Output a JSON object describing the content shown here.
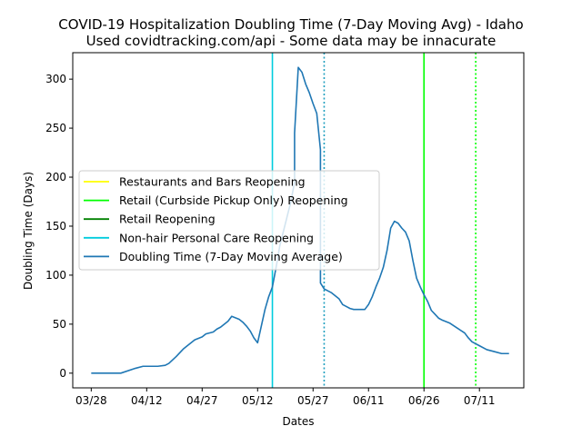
{
  "chart_data": {
    "type": "line",
    "title": "COVID-19 Hospitalization Doubling Time (7-Day Moving Avg) - Idaho",
    "subtitle": "Used covidtracking.com/api - Some data may be innacurate",
    "xlabel": "Dates",
    "ylabel": "Doubling Time (Days)",
    "xticks": [
      "03/28",
      "04/12",
      "04/27",
      "05/12",
      "05/27",
      "06/11",
      "06/26",
      "07/11"
    ],
    "xlim": [
      "2020-03-23",
      "2020-07-23"
    ],
    "ylim": [
      -15,
      327
    ],
    "yticks": [
      0,
      50,
      100,
      150,
      200,
      250,
      300
    ],
    "grid": false,
    "legend_position": "center-left",
    "legend": [
      {
        "label": "Restaurants and Bars Reopening",
        "color": "#ffff00"
      },
      {
        "label": "Retail (Curbside Pickup Only) Reopening",
        "color": "#00ff00"
      },
      {
        "label": "Retail Reopening",
        "color": "#008000"
      },
      {
        "label": "Non-hair Personal Care Reopening",
        "color": "#00ccdd"
      },
      {
        "label": "Doubling Time (7-Day Moving Average)",
        "color": "#1f77b4"
      }
    ],
    "vlines": [
      {
        "date": "2020-05-16",
        "color": "#00ccdd",
        "style": "solid"
      },
      {
        "date": "2020-05-30",
        "color": "#1f9fbf",
        "style": "dotted"
      },
      {
        "date": "2020-06-26",
        "color": "#00ff00",
        "style": "solid"
      },
      {
        "date": "2020-07-10",
        "color": "#00ff00",
        "style": "dotted"
      }
    ],
    "series": [
      {
        "name": "Doubling Time (7-Day Moving Average)",
        "color": "#1f77b4",
        "points": [
          [
            "2020-03-28",
            0
          ],
          [
            "2020-04-03",
            0
          ],
          [
            "2020-04-05",
            0
          ],
          [
            "2020-04-09",
            5
          ],
          [
            "2020-04-11",
            7
          ],
          [
            "2020-04-15",
            7
          ],
          [
            "2020-04-17",
            8
          ],
          [
            "2020-04-18",
            10
          ],
          [
            "2020-04-20",
            17
          ],
          [
            "2020-04-22",
            25
          ],
          [
            "2020-04-25",
            34
          ],
          [
            "2020-04-27",
            37
          ],
          [
            "2020-04-28",
            40
          ],
          [
            "2020-04-30",
            42
          ],
          [
            "2020-05-01",
            45
          ],
          [
            "2020-05-02",
            47
          ],
          [
            "2020-05-04",
            53
          ],
          [
            "2020-05-05",
            58
          ],
          [
            "2020-05-07",
            55
          ],
          [
            "2020-05-08",
            52
          ],
          [
            "2020-05-09",
            48
          ],
          [
            "2020-05-10",
            43
          ],
          [
            "2020-05-11",
            36
          ],
          [
            "2020-05-12",
            31
          ],
          [
            "2020-05-13",
            48
          ],
          [
            "2020-05-14",
            65
          ],
          [
            "2020-05-15",
            78
          ],
          [
            "2020-05-16",
            88
          ],
          [
            "2020-05-17",
            108
          ],
          [
            "2020-05-18",
            130
          ],
          [
            "2020-05-19",
            145
          ],
          [
            "2020-05-20",
            160
          ],
          [
            "2020-05-21",
            175
          ],
          [
            "2020-05-22",
            195
          ],
          [
            "2020-05-22",
            245
          ],
          [
            "2020-05-23",
            312
          ],
          [
            "2020-05-24",
            307
          ],
          [
            "2020-05-25",
            295
          ],
          [
            "2020-05-26",
            286
          ],
          [
            "2020-05-27",
            275
          ],
          [
            "2020-05-28",
            265
          ],
          [
            "2020-05-29",
            228
          ],
          [
            "2020-05-29",
            92
          ],
          [
            "2020-05-30",
            86
          ],
          [
            "2020-06-01",
            82
          ],
          [
            "2020-06-03",
            76
          ],
          [
            "2020-06-04",
            70
          ],
          [
            "2020-06-05",
            68
          ],
          [
            "2020-06-06",
            66
          ],
          [
            "2020-06-07",
            65
          ],
          [
            "2020-06-09",
            65
          ],
          [
            "2020-06-10",
            65
          ],
          [
            "2020-06-11",
            70
          ],
          [
            "2020-06-12",
            78
          ],
          [
            "2020-06-13",
            88
          ],
          [
            "2020-06-14",
            97
          ],
          [
            "2020-06-15",
            108
          ],
          [
            "2020-06-16",
            125
          ],
          [
            "2020-06-17",
            148
          ],
          [
            "2020-06-18",
            155
          ],
          [
            "2020-06-19",
            153
          ],
          [
            "2020-06-20",
            148
          ],
          [
            "2020-06-21",
            144
          ],
          [
            "2020-06-22",
            135
          ],
          [
            "2020-06-23",
            115
          ],
          [
            "2020-06-24",
            97
          ],
          [
            "2020-06-25",
            88
          ],
          [
            "2020-06-26",
            80
          ],
          [
            "2020-06-27",
            73
          ],
          [
            "2020-06-28",
            64
          ],
          [
            "2020-06-29",
            60
          ],
          [
            "2020-06-30",
            56
          ],
          [
            "2020-07-01",
            54
          ],
          [
            "2020-07-03",
            51
          ],
          [
            "2020-07-05",
            46
          ],
          [
            "2020-07-07",
            41
          ],
          [
            "2020-07-08",
            36
          ],
          [
            "2020-07-09",
            32
          ],
          [
            "2020-07-11",
            28
          ],
          [
            "2020-07-13",
            24
          ],
          [
            "2020-07-15",
            22
          ],
          [
            "2020-07-17",
            20
          ],
          [
            "2020-07-19",
            20
          ]
        ]
      }
    ]
  }
}
